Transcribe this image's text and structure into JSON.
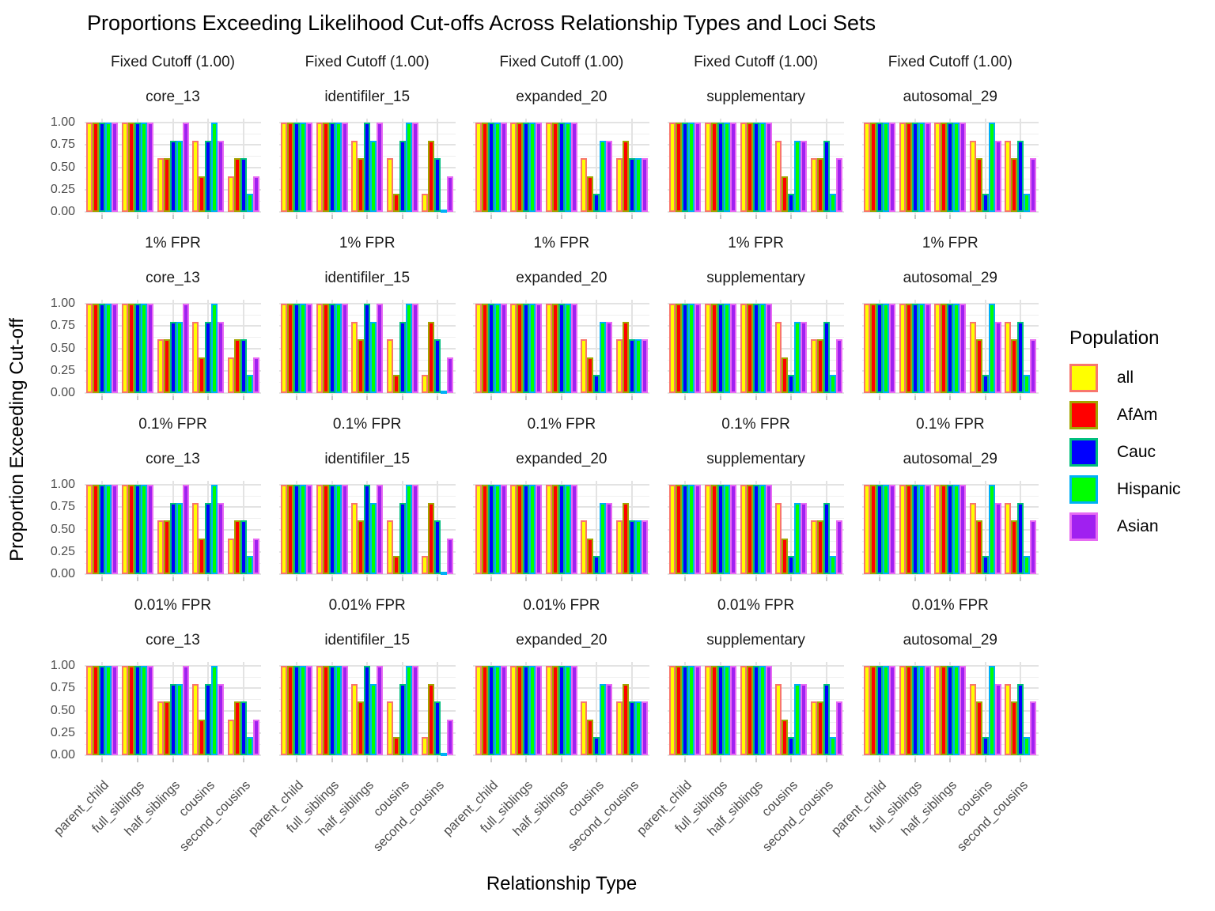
{
  "title": "Proportions Exceeding Likelihood Cut-offs Across Relationship Types and Loci Sets",
  "axes": {
    "x_label": "Relationship Type",
    "y_label": "Proportion Exceeding Cut-off",
    "y_ticks": [
      "1.00",
      "0.75",
      "0.50",
      "0.25",
      "0.00"
    ]
  },
  "legend": {
    "title": "Population"
  },
  "chart_data": {
    "type": "bar",
    "title": "Proportions Exceeding Likelihood Cut-offs Across Relationship Types and Loci Sets",
    "xlabel": "Relationship Type",
    "ylabel": "Proportion Exceeding Cut-off",
    "ylim": [
      0,
      1
    ],
    "y_major_ticks": [
      1.0,
      0.75,
      0.5,
      0.25,
      0.0
    ],
    "y_minor_ticks": [
      0.875,
      0.625,
      0.375,
      0.125
    ],
    "grid": true,
    "legend_position": "right",
    "facet_rows": [
      "Fixed Cutoff (1.00)",
      "1% FPR",
      "0.1% FPR",
      "0.01% FPR"
    ],
    "facet_cols": [
      "core_13",
      "identifiler_15",
      "expanded_20",
      "supplementary",
      "autosomal_29"
    ],
    "categories": [
      "parent_child",
      "full_siblings",
      "half_siblings",
      "cousins",
      "second_cousins"
    ],
    "populations": [
      {
        "name": "all",
        "fill": "#FFFF00",
        "border": "#F8766D"
      },
      {
        "name": "AfAm",
        "fill": "#FF0000",
        "border": "#A3A500"
      },
      {
        "name": "Cauc",
        "fill": "#0000FF",
        "border": "#00BF7D"
      },
      {
        "name": "Hispanic",
        "fill": "#00FF00",
        "border": "#00B0F6"
      },
      {
        "name": "Asian",
        "fill": "#A020F0",
        "border": "#E76BF3"
      }
    ],
    "note": "Bar values (proportions) are identical across all four cutoff facet rows; series order per category is [all, AfAm, Cauc, Hispanic, Asian].",
    "values_by_loci_set": {
      "core_13": {
        "parent_child": [
          1.0,
          1.0,
          1.0,
          1.0,
          1.0
        ],
        "full_siblings": [
          1.0,
          1.0,
          1.0,
          1.0,
          1.0
        ],
        "half_siblings": [
          0.6,
          0.6,
          0.8,
          0.8,
          1.0
        ],
        "cousins": [
          0.8,
          0.4,
          0.8,
          1.0,
          0.8
        ],
        "second_cousins": [
          0.4,
          0.6,
          0.6,
          0.2,
          0.4
        ]
      },
      "identifiler_15": {
        "parent_child": [
          1.0,
          1.0,
          1.0,
          1.0,
          1.0
        ],
        "full_siblings": [
          1.0,
          1.0,
          1.0,
          1.0,
          1.0
        ],
        "half_siblings": [
          0.8,
          0.6,
          1.0,
          0.8,
          1.0
        ],
        "cousins": [
          0.6,
          0.2,
          0.8,
          1.0,
          1.0
        ],
        "second_cousins": [
          0.2,
          0.8,
          0.6,
          0.0,
          0.4
        ]
      },
      "expanded_20": {
        "parent_child": [
          1.0,
          1.0,
          1.0,
          1.0,
          1.0
        ],
        "full_siblings": [
          1.0,
          1.0,
          1.0,
          1.0,
          1.0
        ],
        "half_siblings": [
          1.0,
          1.0,
          1.0,
          1.0,
          1.0
        ],
        "cousins": [
          0.6,
          0.4,
          0.2,
          0.8,
          0.8
        ],
        "second_cousins": [
          0.6,
          0.8,
          0.6,
          0.6,
          0.6
        ]
      },
      "supplementary": {
        "parent_child": [
          1.0,
          1.0,
          1.0,
          1.0,
          1.0
        ],
        "full_siblings": [
          1.0,
          1.0,
          1.0,
          1.0,
          1.0
        ],
        "half_siblings": [
          1.0,
          1.0,
          1.0,
          1.0,
          1.0
        ],
        "cousins": [
          0.8,
          0.4,
          0.2,
          0.8,
          0.8
        ],
        "second_cousins": [
          0.6,
          0.6,
          0.8,
          0.2,
          0.6
        ]
      },
      "autosomal_29": {
        "parent_child": [
          1.0,
          1.0,
          1.0,
          1.0,
          1.0
        ],
        "full_siblings": [
          1.0,
          1.0,
          1.0,
          1.0,
          1.0
        ],
        "half_siblings": [
          1.0,
          1.0,
          1.0,
          1.0,
          1.0
        ],
        "cousins": [
          0.8,
          0.6,
          0.2,
          1.0,
          0.8
        ],
        "second_cousins": [
          0.8,
          0.6,
          0.8,
          0.2,
          0.6
        ]
      }
    }
  }
}
